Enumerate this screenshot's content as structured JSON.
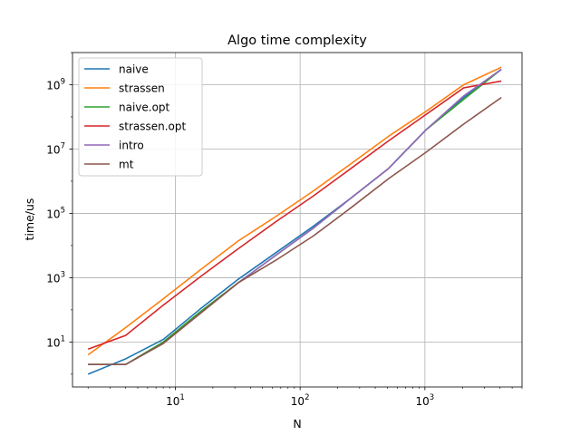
{
  "chart_data": {
    "type": "line",
    "title": "Algo time complexity",
    "xlabel": "N",
    "ylabel": "time/us",
    "xscale": "log",
    "yscale": "log",
    "xlim": [
      1.5,
      6000
    ],
    "ylim": [
      0.4,
      10000000000
    ],
    "grid": true,
    "legend_position": "top-left",
    "x_ticks": [
      {
        "value": 10,
        "base": "10",
        "exp": "1"
      },
      {
        "value": 100,
        "base": "10",
        "exp": "2"
      },
      {
        "value": 1000,
        "base": "10",
        "exp": "3"
      }
    ],
    "y_ticks": [
      {
        "value": 10,
        "base": "10",
        "exp": "1"
      },
      {
        "value": 1000,
        "base": "10",
        "exp": "3"
      },
      {
        "value": 100000,
        "base": "10",
        "exp": "5"
      },
      {
        "value": 10000000,
        "base": "10",
        "exp": "7"
      },
      {
        "value": 1000000000,
        "base": "10",
        "exp": "9"
      }
    ],
    "x": [
      2,
      4,
      8,
      16,
      32,
      64,
      128,
      256,
      512,
      1024,
      2048,
      4096
    ],
    "series": [
      {
        "name": "naive",
        "color": "#1f77b4",
        "values": [
          1,
          3,
          12,
          110,
          900,
          6000,
          40000,
          300000,
          2500000,
          40000000,
          400000000,
          3000000000
        ]
      },
      {
        "name": "strassen",
        "color": "#ff7f0e",
        "values": [
          4,
          28,
          220,
          1800,
          14000,
          80000,
          500000,
          3500000,
          25000000,
          150000000,
          1000000000,
          3500000000
        ]
      },
      {
        "name": "naive.opt",
        "color": "#2ca02c",
        "values": [
          2,
          2,
          10,
          90,
          700,
          5000,
          35000,
          300000,
          2500000,
          40000000,
          350000000,
          3000000000
        ]
      },
      {
        "name": "strassen.opt",
        "color": "#d62728",
        "values": [
          6,
          16,
          140,
          1100,
          8000,
          55000,
          350000,
          2500000,
          18000000,
          120000000,
          800000000,
          1300000000
        ]
      },
      {
        "name": "intro",
        "color": "#9467bd",
        "values": [
          2,
          2,
          9,
          80,
          700,
          5000,
          35000,
          300000,
          2500000,
          40000000,
          450000000,
          3000000000
        ]
      },
      {
        "name": "mt",
        "color": "#8c564b",
        "values": [
          2,
          2,
          9,
          80,
          700,
          3500,
          20000,
          150000,
          1200000,
          8000000,
          60000000,
          400000000
        ]
      }
    ]
  }
}
